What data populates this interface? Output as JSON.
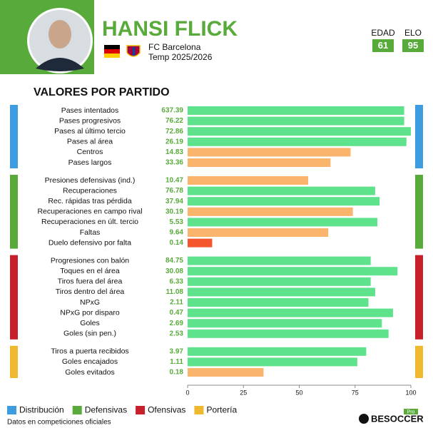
{
  "header": {
    "name": "HANSI FLICK",
    "club": "FC Barcelona",
    "season": "Temp 2025/2026",
    "stats": [
      {
        "label": "EDAD",
        "value": 61
      },
      {
        "label": "ELO",
        "value": 95
      }
    ]
  },
  "chart_data": {
    "type": "bar",
    "orientation": "horizontal",
    "title": "VALORES POR PARTIDO",
    "xlim": [
      0,
      100
    ],
    "xticks": [
      0,
      25,
      50,
      75,
      100
    ],
    "groups": [
      {
        "name": "Distribución",
        "color": "#3d9ce0",
        "categories": [
          "Pases intentados",
          "Pases progresivos",
          "Pases al último tercio",
          "Pases al área",
          "Centros",
          "Pases largos"
        ],
        "stats": [
          637.39,
          76.22,
          72.86,
          26.19,
          14.83,
          33.36
        ],
        "values": [
          97,
          97,
          100,
          98,
          73,
          64
        ],
        "colors": [
          "#5ee38c",
          "#5ee38c",
          "#5ee38c",
          "#5ee38c",
          "#fbb46b",
          "#fbb46b"
        ]
      },
      {
        "name": "Defensivas",
        "color": "#58ab3a",
        "categories": [
          "Presiones defensivas (ind.)",
          "Recuperaciones",
          "Rec. rápidas tras pérdida",
          "Recuperaciones en campo rival",
          "Recuperaciones en últ. tercio",
          "Faltas",
          "Duelo defensivo por falta"
        ],
        "stats": [
          10.47,
          76.78,
          37.94,
          30.19,
          5.53,
          9.64,
          0.14
        ],
        "values": [
          54,
          84,
          86,
          74,
          85,
          63,
          11
        ],
        "colors": [
          "#fbb46b",
          "#5ee38c",
          "#5ee38c",
          "#fbb46b",
          "#5ee38c",
          "#fbb46b",
          "#f4552c"
        ]
      },
      {
        "name": "Ofensivas",
        "color": "#c8202a",
        "categories": [
          "Progresiones con balón",
          "Toques en el área",
          "Tiros fuera del área",
          "Tiros dentro del área",
          "NPxG",
          "NPxG por disparo",
          "Goles",
          "Goles (sin pen.)"
        ],
        "stats": [
          84.75,
          30.08,
          6.33,
          11.08,
          2.11,
          0.47,
          2.69,
          2.53
        ],
        "values": [
          82,
          94,
          82,
          84,
          81,
          92,
          87,
          90
        ],
        "colors": [
          "#5ee38c",
          "#5ee38c",
          "#5ee38c",
          "#5ee38c",
          "#5ee38c",
          "#5ee38c",
          "#5ee38c",
          "#5ee38c"
        ]
      },
      {
        "name": "Portería",
        "color": "#efb92f",
        "categories": [
          "Tiros a puerta recibidos",
          "Goles encajados",
          "Goles evitados"
        ],
        "stats": [
          3.97,
          1.11,
          0.18
        ],
        "values": [
          80,
          76,
          34
        ],
        "colors": [
          "#5ee38c",
          "#5ee38c",
          "#fbb46b"
        ]
      }
    ]
  },
  "footer": {
    "note": "Datos en competiciones oficiales",
    "brand": "BESOCCER",
    "brand_tag": "Pro"
  }
}
